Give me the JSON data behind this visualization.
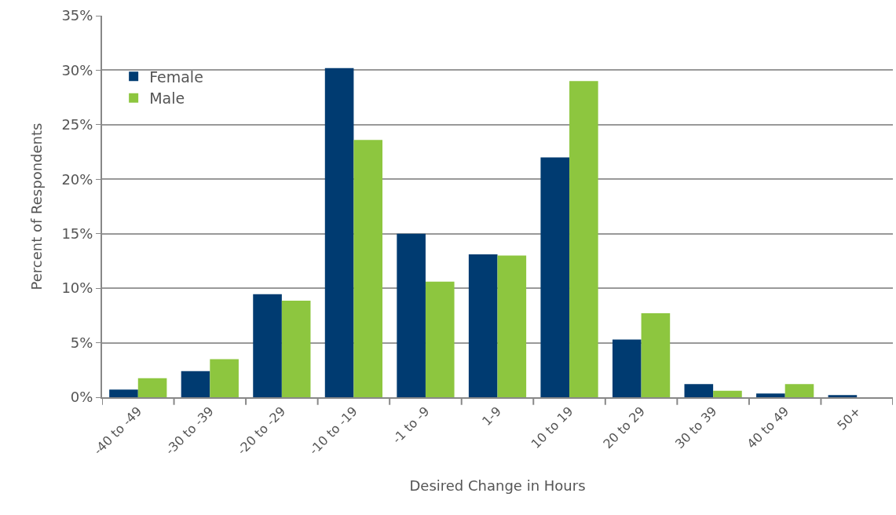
{
  "chart_data": {
    "type": "bar",
    "xlabel": "Desired Change in Hours",
    "ylabel": "Percent of Respondents",
    "categories": [
      "-40 to -49",
      "-30 to -39",
      "-20 to -29",
      "-10 to -19",
      "-1 to -9",
      "1-9",
      "10 to 19",
      "20 to 29",
      "30 to 39",
      "40 to 49",
      "50+"
    ],
    "series": [
      {
        "name": "Female",
        "color": "#003b71",
        "values": [
          0.7,
          2.4,
          9.45,
          30.2,
          15,
          13.1,
          22,
          5.3,
          1.2,
          0.35,
          0.2
        ]
      },
      {
        "name": "Male",
        "color": "#8dc63f",
        "values": [
          1.75,
          3.5,
          8.85,
          23.6,
          10.6,
          13,
          29,
          7.7,
          0.6,
          1.2,
          0
        ]
      }
    ],
    "ylim": [
      0,
      35
    ],
    "yticks": [
      {
        "value": 0,
        "label": "0%"
      },
      {
        "value": 5,
        "label": "5%"
      },
      {
        "value": 10,
        "label": "10%"
      },
      {
        "value": 15,
        "label": "15%"
      },
      {
        "value": 20,
        "label": "20%"
      },
      {
        "value": 25,
        "label": "25%"
      },
      {
        "value": 30,
        "label": "30%"
      },
      {
        "value": 35,
        "label": "35%"
      }
    ],
    "grid": "y",
    "legend": "top left"
  }
}
